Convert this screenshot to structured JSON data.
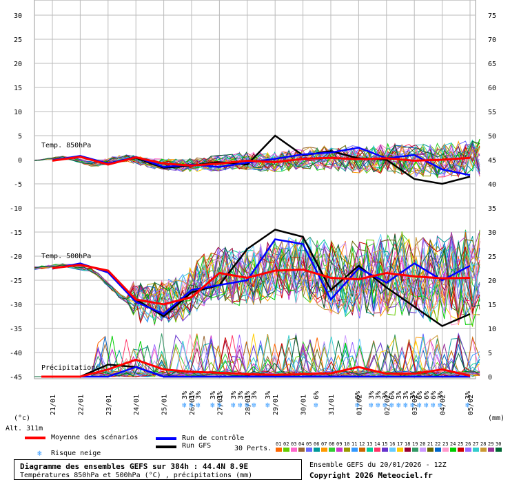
{
  "chart_data": {
    "type": "line",
    "x": [
      "21/01",
      "22/01",
      "23/01",
      "24/01",
      "25/01",
      "26/01",
      "27/01",
      "28/01",
      "29/01",
      "30/01",
      "31/01",
      "01/02",
      "02/02",
      "03/02",
      "04/02",
      "05/02"
    ],
    "left_ticks": [
      "30",
      "25",
      "20",
      "15",
      "10",
      "5",
      "0",
      "-5",
      "-10",
      "-15",
      "-20",
      "-25",
      "-30",
      "-35",
      "-40",
      "-45"
    ],
    "right_ticks": [
      "75",
      "70",
      "65",
      "60",
      "55",
      "50",
      "45",
      "40",
      "35",
      "30",
      "25",
      "20",
      "15",
      "10",
      "5",
      "0"
    ],
    "ylim_temp": [
      -45,
      30
    ],
    "ylim_precip": [
      0,
      75
    ],
    "left_unit": "(°c)",
    "right_unit": "(mm)",
    "series_labels": {
      "t850": "Temp. 850hPa",
      "t500": "Temp. 500hPa",
      "precip": "Précipitations"
    },
    "series": [
      {
        "name": "Moyenne des scénarios",
        "color": "#ff0000",
        "t850": [
          -0.2,
          0.6,
          -1.0,
          0.5,
          -0.8,
          -1.2,
          -0.8,
          -0.2,
          -0.5,
          0.2,
          0.4,
          0.1,
          0.3,
          -0.2,
          0.0,
          0.4
        ],
        "t500": [
          -22.5,
          -21.8,
          -23.0,
          -29.0,
          -30.0,
          -28.5,
          -23.5,
          -24.5,
          -23.0,
          -22.8,
          -24.5,
          -24.8,
          -23.5,
          -24.2,
          -24.6,
          -24.5
        ],
        "precip": [
          0,
          0,
          1.5,
          3.5,
          1.5,
          1.0,
          0.8,
          0.5,
          0.4,
          0.5,
          0.7,
          2.0,
          0.6,
          0.6,
          1.5,
          0.2
        ]
      },
      {
        "name": "Run de contrôle",
        "color": "#0000ff",
        "t850": [
          -0.1,
          0.8,
          -0.8,
          0.6,
          -1.5,
          -1.0,
          -1.5,
          -0.6,
          0.2,
          1.1,
          1.5,
          2.5,
          0.3,
          1.0,
          -2.0,
          -3.2
        ],
        "t500": [
          -22.6,
          -21.5,
          -23.4,
          -29.5,
          -32.0,
          -27.0,
          -26.0,
          -25.0,
          -16.5,
          -17.5,
          -29.0,
          -22.5,
          -25.5,
          -21.5,
          -25.0,
          -22.0
        ],
        "precip": [
          0,
          0,
          0,
          2.0,
          0,
          0,
          0,
          0,
          0,
          0,
          0,
          0,
          0,
          0,
          0,
          0
        ]
      },
      {
        "name": "Run GFS",
        "color": "#000000",
        "t850": [
          -0.1,
          0.7,
          -0.9,
          0.4,
          -1.7,
          -1.2,
          -0.5,
          -1.0,
          5.0,
          0.9,
          1.8,
          0.3,
          0.0,
          -4.0,
          -5.0,
          -3.5
        ],
        "t500": [
          -22.6,
          -21.6,
          -23.2,
          -29.0,
          -32.5,
          -27.5,
          -26.0,
          -18.5,
          -14.5,
          -16.0,
          -27.0,
          -22.0,
          -26.5,
          -30.5,
          -34.5,
          -32.0
        ],
        "precip": [
          0,
          0,
          2.5,
          2.0,
          0,
          0,
          0,
          0,
          0,
          0,
          0,
          0,
          0,
          0,
          0,
          0
        ]
      }
    ],
    "perturbations": {
      "label": "30 Perts.",
      "count": 30
    }
  },
  "labels": {
    "alt": "Alt. 311m",
    "legend_mean": "Moyenne des scénarios",
    "legend_control": "Run de contrôle",
    "legend_gfs": "Run GFS",
    "legend_snow": "Risque neige",
    "perts": "30 Perts.",
    "footer_title": "Diagramme des ensembles GEFS sur 384h : 44.4N 8.9E",
    "footer_sub": "Températures 850hPa et 500hPa (°C) , précipitations (mm)",
    "ensemble": "Ensemble GEFS du 20/01/2026 - 12Z",
    "copyright": "Copyright 2026 Meteociel.fr"
  },
  "snow_badges": [
    "3%",
    "3%",
    "3%",
    "3%",
    "3%",
    "3%",
    "3%",
    "3%",
    "3%",
    "3%",
    "6%",
    "6%",
    "3%",
    "3%",
    "3%",
    "6%",
    "3%",
    "3%",
    "3%",
    "6%",
    "6%",
    "6%",
    "3%",
    "3%",
    "3%",
    "3%",
    "3%",
    "3%",
    "3%",
    "3%",
    "3%"
  ],
  "pert_colors": [
    "#ff6600",
    "#66cc00",
    "#ff66cc",
    "#996633",
    "#6666ff",
    "#009999",
    "#ff9900",
    "#33cc33",
    "#cc33cc",
    "#999900",
    "#3399ff",
    "#cc6600",
    "#00cc99",
    "#ff3366",
    "#6633cc",
    "#66ccff",
    "#ffcc00",
    "#990033",
    "#339966",
    "#cc99ff",
    "#666600",
    "#0066cc",
    "#ff99cc",
    "#00cc00",
    "#cc0000",
    "#9966ff",
    "#33cccc",
    "#cc9933",
    "#993399",
    "#006633"
  ]
}
